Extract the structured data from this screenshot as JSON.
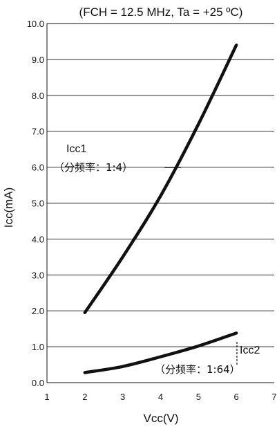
{
  "chart_data": {
    "type": "line",
    "title": "(FCH = 12.5 MHz, Ta = +25 ºC)",
    "xlabel": "Vcc(V)",
    "ylabel": "Icc(mA)",
    "xlim": [
      1,
      7
    ],
    "ylim": [
      0.0,
      10.0
    ],
    "xticks": [
      "1",
      "2",
      "3",
      "4",
      "5",
      "6",
      "7"
    ],
    "yticks": [
      "0.0",
      "1.0",
      "2.0",
      "3.0",
      "4.0",
      "5.0",
      "6.0",
      "7.0",
      "8.0",
      "9.0",
      "10.0"
    ],
    "grid": "horizontal",
    "series": [
      {
        "name": "Icc1",
        "x": [
          2,
          3,
          4,
          5,
          6
        ],
        "y": [
          1.95,
          3.5,
          5.2,
          7.2,
          9.4
        ]
      },
      {
        "name": "Icc2",
        "x": [
          2,
          3,
          4,
          5,
          6
        ],
        "y": [
          0.28,
          0.45,
          0.72,
          1.02,
          1.38
        ]
      }
    ],
    "annotations": [
      {
        "line1": "Icc1",
        "line2": "（分频率：1:4）"
      },
      {
        "line1": "Icc2",
        "line2": "（分频率：1:64）"
      }
    ]
  }
}
